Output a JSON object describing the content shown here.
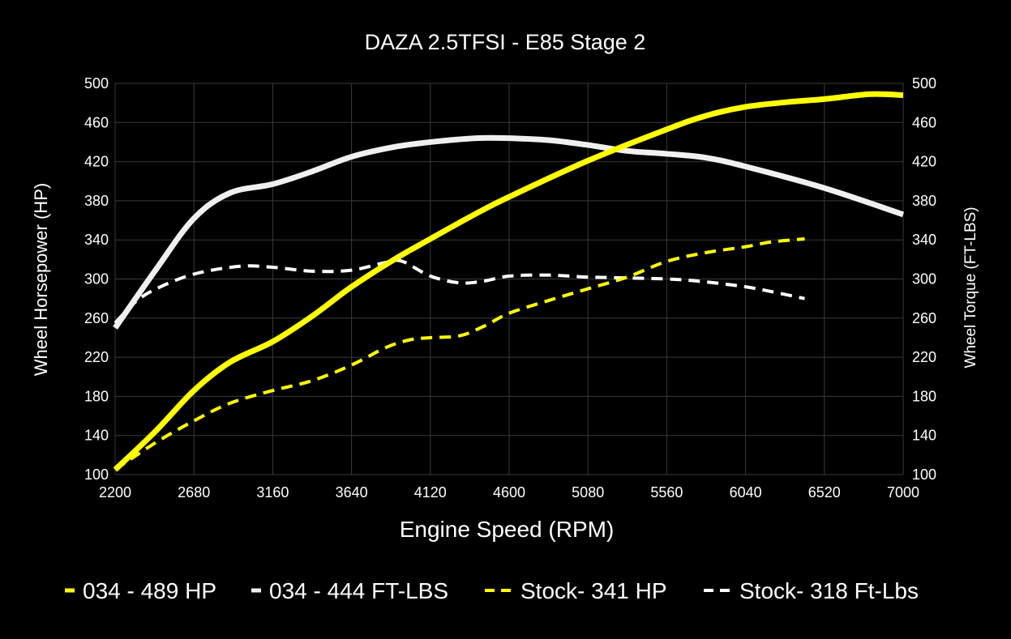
{
  "chart_data": {
    "type": "line",
    "title": "DAZA 2.5TFSI - E85 Stage 2",
    "xlabel": "Engine Speed (RPM)",
    "ylabel": "Wheel Horsepower (HP)",
    "y2label": "Wheel Torque (FT-LBS)",
    "xlim": [
      2200,
      7000
    ],
    "ylim": [
      100,
      500
    ],
    "y2lim": [
      100,
      500
    ],
    "xticks": [
      "2200",
      "2680",
      "3160",
      "3640",
      "4120",
      "4600",
      "5080",
      "5560",
      "6040",
      "6520",
      "7000"
    ],
    "yticks": [
      "100",
      "140",
      "180",
      "220",
      "260",
      "300",
      "340",
      "380",
      "420",
      "460",
      "500"
    ],
    "grid": true,
    "legend_position": "bottom",
    "series": [
      {
        "name": "034 - 489 HP",
        "color": "#ffff00",
        "style": "solid",
        "x": [
          2200,
          2450,
          2680,
          2900,
          3160,
          3400,
          3640,
          3900,
          4120,
          4400,
          4600,
          5080,
          5560,
          5800,
          6040,
          6300,
          6520,
          6800,
          7000
        ],
        "y": [
          105,
          145,
          186,
          215,
          236,
          262,
          292,
          320,
          341,
          367,
          384,
          421,
          453,
          467,
          476,
          481,
          484,
          489,
          488
        ]
      },
      {
        "name": "034 - 444 FT-LBS",
        "color": "#f0f0f0",
        "style": "solid",
        "x": [
          2200,
          2450,
          2680,
          2900,
          3160,
          3400,
          3640,
          3900,
          4120,
          4400,
          4600,
          4840,
          5080,
          5320,
          5560,
          5800,
          6040,
          6520,
          7000
        ],
        "y": [
          250,
          310,
          362,
          388,
          397,
          410,
          425,
          435,
          440,
          444,
          444,
          442,
          437,
          431,
          428,
          424,
          415,
          393,
          366
        ]
      },
      {
        "name": "Stock- 341 HP",
        "color": "#ffff00",
        "style": "dashed",
        "x": [
          2200,
          2450,
          2680,
          2900,
          3160,
          3400,
          3640,
          3850,
          4000,
          4120,
          4300,
          4450,
          4600,
          4840,
          5080,
          5320,
          5560,
          5800,
          6040,
          6200,
          6400
        ],
        "y": [
          105,
          133,
          155,
          173,
          186,
          196,
          212,
          230,
          238,
          240,
          242,
          252,
          265,
          278,
          290,
          302,
          318,
          327,
          333,
          338,
          341
        ]
      },
      {
        "name": "Stock- 318 Ft-Lbs",
        "color": "#ffffff",
        "style": "dashed",
        "x": [
          2200,
          2320,
          2450,
          2680,
          2960,
          3160,
          3400,
          3640,
          3850,
          3950,
          4120,
          4300,
          4450,
          4600,
          4840,
          5080,
          5560,
          5800,
          6040,
          6200,
          6400
        ],
        "y": [
          255,
          276,
          290,
          305,
          313,
          312,
          308,
          309,
          317,
          318,
          303,
          296,
          298,
          303,
          304,
          302,
          300,
          297,
          292,
          287,
          280
        ]
      }
    ]
  }
}
